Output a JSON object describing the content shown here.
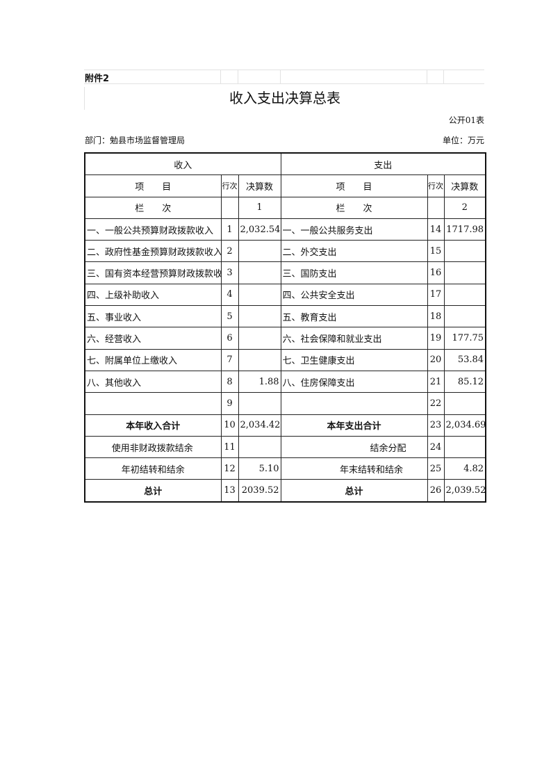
{
  "attachment": "附件2",
  "title": "收入支出决算总表",
  "table_code": "公开01表",
  "department": "部门：勉县市场监督管理局",
  "unit": "单位：万元",
  "headers": {
    "income": "收入",
    "expense": "支出",
    "item": "项　　目",
    "row_no": "行次",
    "amount": "决算数",
    "column_label": "栏　　次",
    "col1": "1",
    "col2": "2"
  },
  "rows": [
    {
      "in_item": "一、一般公共预算财政拨款收入",
      "in_no": "1",
      "in_amt": "2,032.54",
      "ex_item": "一、一般公共服务支出",
      "ex_no": "14",
      "ex_amt": "1717.98"
    },
    {
      "in_item": "二、政府性基金预算财政拨款收入",
      "in_no": "2",
      "in_amt": "",
      "ex_item": "二、外交支出",
      "ex_no": "15",
      "ex_amt": ""
    },
    {
      "in_item": "三、国有资本经营预算财政拨款收入",
      "in_no": "3",
      "in_amt": "",
      "ex_item": "三、国防支出",
      "ex_no": "16",
      "ex_amt": ""
    },
    {
      "in_item": "四、上级补助收入",
      "in_no": "4",
      "in_amt": "",
      "ex_item": "四、公共安全支出",
      "ex_no": "17",
      "ex_amt": ""
    },
    {
      "in_item": "五、事业收入",
      "in_no": "5",
      "in_amt": "",
      "ex_item": "五、教育支出",
      "ex_no": "18",
      "ex_amt": ""
    },
    {
      "in_item": "六、经营收入",
      "in_no": "6",
      "in_amt": "",
      "ex_item": "六、社会保障和就业支出",
      "ex_no": "19",
      "ex_amt": "177.75"
    },
    {
      "in_item": "七、附属单位上缴收入",
      "in_no": "7",
      "in_amt": "",
      "ex_item": "七、卫生健康支出",
      "ex_no": "20",
      "ex_amt": "53.84"
    },
    {
      "in_item": "八、其他收入",
      "in_no": "8",
      "in_amt": "1.88",
      "ex_item": "八、住房保障支出",
      "ex_no": "21",
      "ex_amt": "85.12"
    },
    {
      "in_item": "",
      "in_no": "9",
      "in_amt": "",
      "ex_item": "",
      "ex_no": "22",
      "ex_amt": ""
    }
  ],
  "summary": [
    {
      "in_item": "本年收入合计",
      "in_no": "10",
      "in_amt": "2,034.42",
      "ex_item": "本年支出合计",
      "ex_no": "23",
      "ex_amt": "2,034.69"
    },
    {
      "in_item": "使用非财政拨款结余",
      "in_no": "11",
      "in_amt": "",
      "ex_item": "结余分配",
      "ex_no": "24",
      "ex_amt": ""
    },
    {
      "in_item": "年初结转和结余",
      "in_no": "12",
      "in_amt": "5.10",
      "ex_item": "年末结转和结余",
      "ex_no": "25",
      "ex_amt": "4.82"
    },
    {
      "in_item": "总计",
      "in_no": "13",
      "in_amt": "2039.52",
      "ex_item": "总计",
      "ex_no": "26",
      "ex_amt": "2,039.52"
    }
  ]
}
